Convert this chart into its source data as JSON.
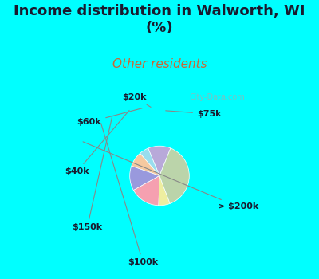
{
  "title": "Income distribution in Walworth, WI\n(%)",
  "subtitle": "Other residents",
  "title_color": "#1a1a2e",
  "subtitle_color": "#cc6633",
  "bg_color": "#00ffff",
  "chart_bg": "#e8f5e8",
  "watermark": "City-Data.com",
  "labels": [
    "$75k",
    "$20k",
    "$60k",
    "$40k",
    "$150k",
    "$100k",
    "> $200k"
  ],
  "sizes": [
    12,
    5,
    8,
    13,
    16,
    6,
    37
  ],
  "colors": [
    "#b8a9d9",
    "#99ddee",
    "#f5c9a0",
    "#9999dd",
    "#f5a0b0",
    "#eeeea0",
    "#bbd4aa"
  ],
  "startangle": 68
}
